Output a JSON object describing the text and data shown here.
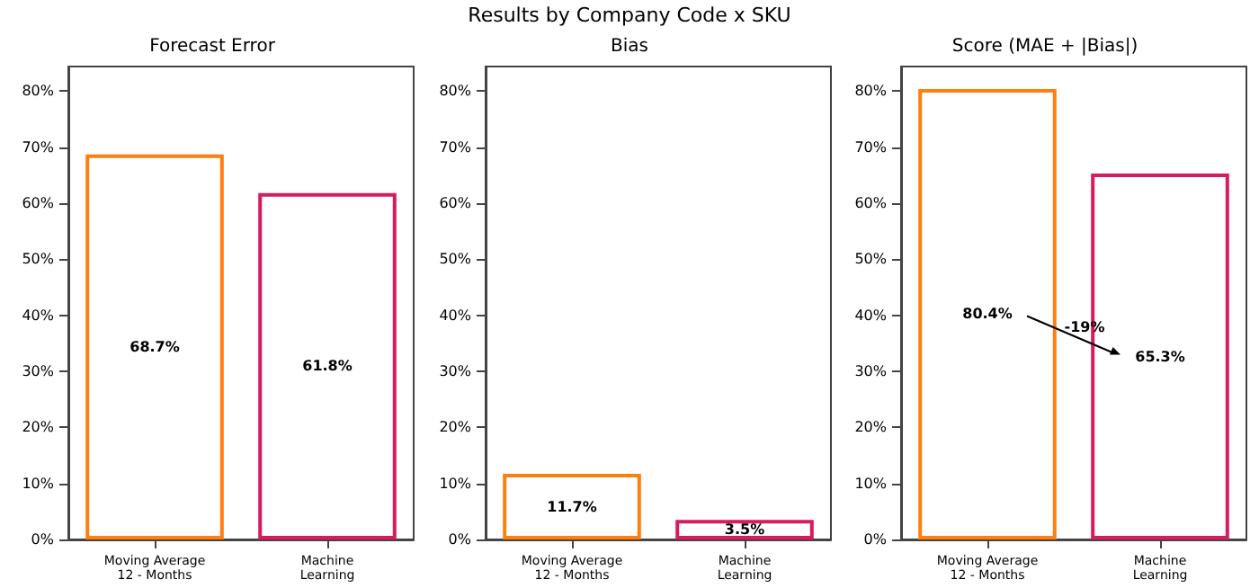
{
  "chart_data": [
    {
      "type": "bar",
      "title": "Forecast Error",
      "categories": [
        "Moving Average\n12 - Months",
        "Machine\nLearning"
      ],
      "values": [
        68.7,
        61.8
      ],
      "colors": [
        "#ff7f0e",
        "#d81b60"
      ],
      "value_labels": [
        "68.7%",
        "61.8%"
      ],
      "ylim": [
        0,
        84.4
      ],
      "yticks": [
        {
          "value": 0,
          "label": "0%"
        },
        {
          "value": 10,
          "label": "10%"
        },
        {
          "value": 20,
          "label": "20%"
        },
        {
          "value": 30,
          "label": "30%"
        },
        {
          "value": 40,
          "label": "40%"
        },
        {
          "value": 50,
          "label": "50%"
        },
        {
          "value": 60,
          "label": "60%"
        },
        {
          "value": 70,
          "label": "70%"
        },
        {
          "value": 80,
          "label": "80%"
        }
      ],
      "grid": false,
      "annotations": [
        "Results by Company Code x SKU"
      ]
    },
    {
      "type": "bar",
      "title": "Bias",
      "categories": [
        "Moving Average\n12 - Months",
        "Machine\nLearning"
      ],
      "values": [
        11.7,
        3.5
      ],
      "colors": [
        "#ff7f0e",
        "#d81b60"
      ],
      "value_labels": [
        "11.7%",
        "3.5%"
      ],
      "ylim": [
        0,
        84.4
      ],
      "yticks": [
        {
          "value": 0,
          "label": "0%"
        },
        {
          "value": 10,
          "label": "10%"
        },
        {
          "value": 20,
          "label": "20%"
        },
        {
          "value": 30,
          "label": "30%"
        },
        {
          "value": 40,
          "label": "40%"
        },
        {
          "value": 50,
          "label": "50%"
        },
        {
          "value": 60,
          "label": "60%"
        },
        {
          "value": 70,
          "label": "70%"
        },
        {
          "value": 80,
          "label": "80%"
        }
      ],
      "grid": false
    },
    {
      "type": "bar",
      "title": "Score (MAE + |Bias|)",
      "categories": [
        "Moving Average\n12 - Months",
        "Machine\nLearning"
      ],
      "values": [
        80.4,
        65.3
      ],
      "colors": [
        "#ff7f0e",
        "#d81b60"
      ],
      "value_labels": [
        "80.4%",
        "65.3%"
      ],
      "ylim": [
        0,
        84.4
      ],
      "yticks": [
        {
          "value": 0,
          "label": "0%"
        },
        {
          "value": 10,
          "label": "10%"
        },
        {
          "value": 20,
          "label": "20%"
        },
        {
          "value": 30,
          "label": "30%"
        },
        {
          "value": 40,
          "label": "40%"
        },
        {
          "value": 50,
          "label": "50%"
        },
        {
          "value": 60,
          "label": "60%"
        },
        {
          "value": 70,
          "label": "70%"
        },
        {
          "value": 80,
          "label": "80%"
        }
      ],
      "grid": false,
      "annotations": [
        "-19%"
      ]
    }
  ]
}
